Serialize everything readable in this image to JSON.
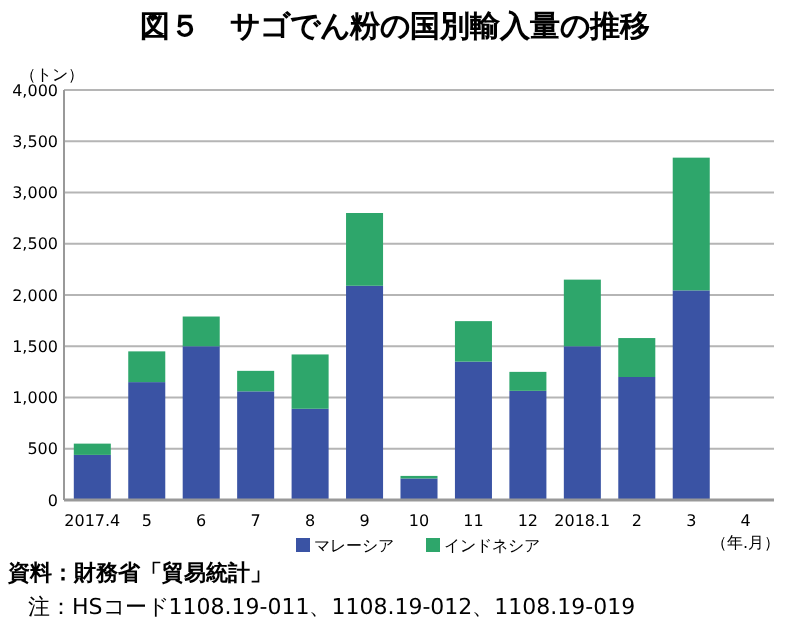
{
  "chart_data": {
    "type": "bar",
    "title": "図５　サゴでん粉の国別輸入量の推移",
    "ylabel": "（トン）",
    "xlabel": "（年.月）",
    "categories": [
      "2017.4",
      "5",
      "6",
      "7",
      "8",
      "9",
      "10",
      "11",
      "12",
      "2018.1",
      "2",
      "3",
      "4"
    ],
    "stacked": true,
    "series": [
      {
        "name": "マレーシア",
        "color": "#3a53a4",
        "values": [
          440,
          1150,
          1500,
          1060,
          890,
          2090,
          210,
          1350,
          1065,
          1500,
          1200,
          2045,
          null
        ]
      },
      {
        "name": "インドネシア",
        "color": "#2ea66b",
        "values": [
          110,
          300,
          290,
          200,
          530,
          710,
          25,
          395,
          185,
          650,
          380,
          1295,
          null
        ]
      }
    ],
    "ylim": [
      0,
      4000
    ],
    "yticks": [
      {
        "value": 0,
        "label": "0"
      },
      {
        "value": 500,
        "label": "500"
      },
      {
        "value": 1000,
        "label": "1,000"
      },
      {
        "value": 1500,
        "label": "1,500"
      },
      {
        "value": 2000,
        "label": "2,000"
      },
      {
        "value": 2500,
        "label": "2,500"
      },
      {
        "value": 3000,
        "label": "3,000"
      },
      {
        "value": 3500,
        "label": "3,500"
      },
      {
        "value": 4000,
        "label": "4,000"
      }
    ],
    "grid": "y",
    "legend": "bottom",
    "annotations": [
      "資料：財務省「貿易統計」",
      "注：HSコード1108.19-011、1108.19-012、1108.19-019"
    ]
  }
}
